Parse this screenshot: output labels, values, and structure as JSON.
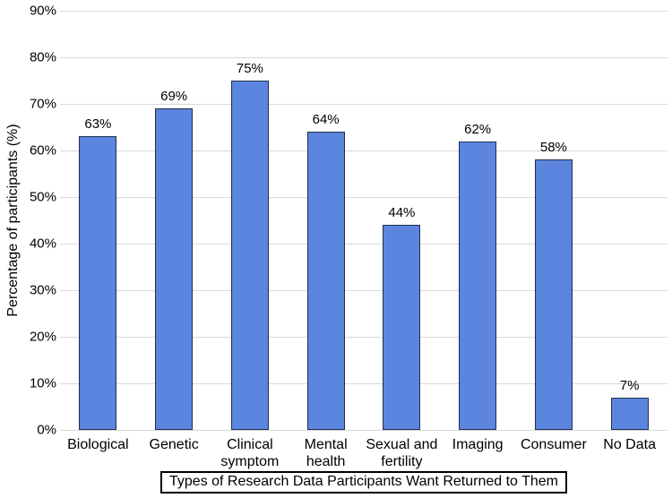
{
  "chart_data": {
    "type": "bar",
    "title": "",
    "categories": [
      "Biological",
      "Genetic",
      "Clinical symptom",
      "Mental health",
      "Sexual and fertility",
      "Imaging",
      "Consumer",
      "No Data"
    ],
    "values": [
      63,
      69,
      75,
      64,
      44,
      62,
      58,
      7
    ],
    "value_labels": [
      "63%",
      "69%",
      "75%",
      "64%",
      "44%",
      "62%",
      "58%",
      "7%"
    ],
    "xlabel": "Types of Research Data Participants Want Returned to Them",
    "ylabel": "Percentage of participants (%)",
    "ylim": [
      0,
      90
    ],
    "ytick_step": 10,
    "ytick_labels": [
      "0%",
      "10%",
      "20%",
      "30%",
      "40%",
      "50%",
      "60%",
      "70%",
      "80%",
      "90%"
    ],
    "grid": true,
    "legend": "none",
    "colors": {
      "bar_fill": "#5b85de",
      "bar_border": "#20304c",
      "gridline": "#d9d9d9",
      "text": "#000000",
      "background": "#ffffff",
      "box_border": "#000000"
    }
  }
}
